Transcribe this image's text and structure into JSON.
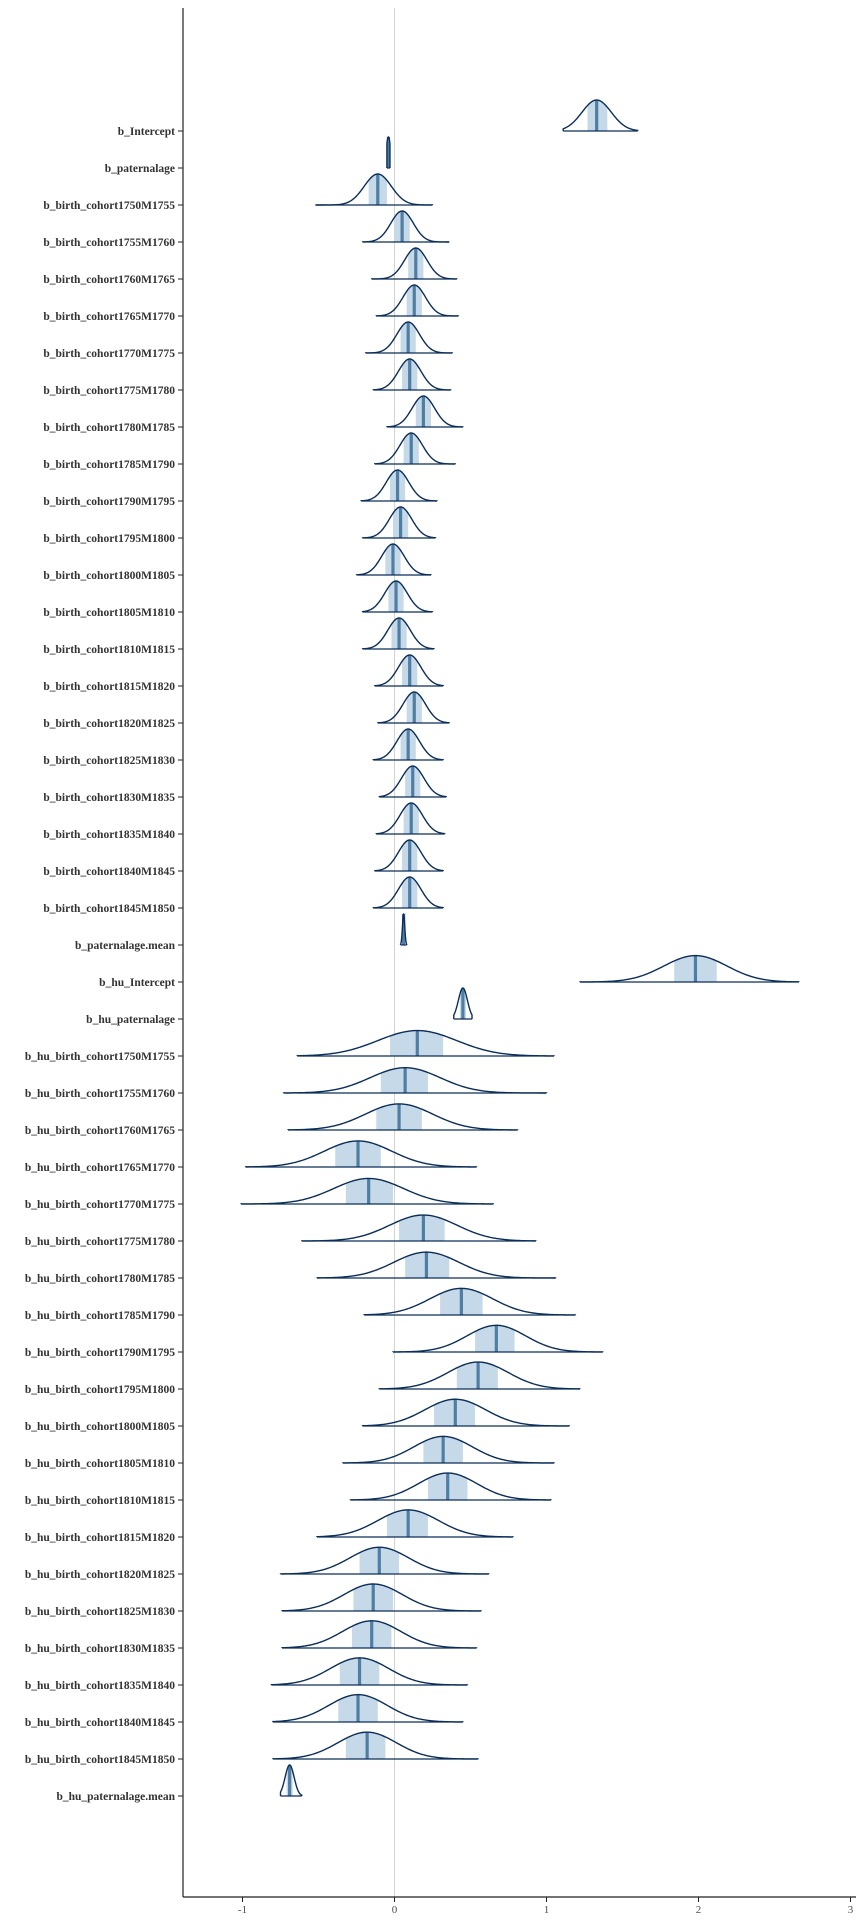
{
  "chart_data": {
    "type": "ridgeline",
    "title": "",
    "xlabel": "",
    "ylabel": "",
    "xlim": [
      -1.4,
      3.0
    ],
    "xticks": [
      -1,
      0,
      1,
      2,
      3
    ],
    "xtick_labels": [
      "-1",
      "0",
      "1",
      "2",
      "3"
    ],
    "reference_line_x": 0,
    "grid": false,
    "colors": {
      "outline": "#0b2e59",
      "interval_fill": "#c6d9e8",
      "median_line": "#4f7ea4",
      "reference_line": "#d3d3d3",
      "axis": "#222222"
    },
    "parameters": [
      {
        "name": "b_Intercept",
        "median": 1.33,
        "lo": 1.27,
        "hi": 1.4,
        "min": 1.11,
        "max": 1.6
      },
      {
        "name": "b_paternalage",
        "median": -0.04,
        "lo": -0.05,
        "hi": -0.03,
        "min": -0.05,
        "max": -0.03
      },
      {
        "name": "b_birth_cohort1750M1755",
        "median": -0.11,
        "lo": -0.17,
        "hi": -0.05,
        "min": -0.52,
        "max": 0.25
      },
      {
        "name": "b_birth_cohort1755M1760",
        "median": 0.05,
        "lo": 0.0,
        "hi": 0.1,
        "min": -0.21,
        "max": 0.36
      },
      {
        "name": "b_birth_cohort1760M1765",
        "median": 0.14,
        "lo": 0.09,
        "hi": 0.19,
        "min": -0.15,
        "max": 0.41
      },
      {
        "name": "b_birth_cohort1765M1770",
        "median": 0.13,
        "lo": 0.08,
        "hi": 0.18,
        "min": -0.12,
        "max": 0.42
      },
      {
        "name": "b_birth_cohort1770M1775",
        "median": 0.09,
        "lo": 0.04,
        "hi": 0.14,
        "min": -0.19,
        "max": 0.38
      },
      {
        "name": "b_birth_cohort1775M1780",
        "median": 0.1,
        "lo": 0.05,
        "hi": 0.15,
        "min": -0.14,
        "max": 0.37
      },
      {
        "name": "b_birth_cohort1780M1785",
        "median": 0.19,
        "lo": 0.14,
        "hi": 0.24,
        "min": -0.05,
        "max": 0.45
      },
      {
        "name": "b_birth_cohort1785M1790",
        "median": 0.11,
        "lo": 0.06,
        "hi": 0.16,
        "min": -0.13,
        "max": 0.4
      },
      {
        "name": "b_birth_cohort1790M1795",
        "median": 0.02,
        "lo": -0.03,
        "hi": 0.07,
        "min": -0.22,
        "max": 0.28
      },
      {
        "name": "b_birth_cohort1795M1800",
        "median": 0.04,
        "lo": -0.01,
        "hi": 0.09,
        "min": -0.21,
        "max": 0.27
      },
      {
        "name": "b_birth_cohort1800M1805",
        "median": -0.01,
        "lo": -0.06,
        "hi": 0.04,
        "min": -0.25,
        "max": 0.24
      },
      {
        "name": "b_birth_cohort1805M1810",
        "median": 0.01,
        "lo": -0.04,
        "hi": 0.06,
        "min": -0.21,
        "max": 0.25
      },
      {
        "name": "b_birth_cohort1810M1815",
        "median": 0.03,
        "lo": -0.02,
        "hi": 0.08,
        "min": -0.21,
        "max": 0.26
      },
      {
        "name": "b_birth_cohort1815M1820",
        "median": 0.1,
        "lo": 0.05,
        "hi": 0.15,
        "min": -0.13,
        "max": 0.32
      },
      {
        "name": "b_birth_cohort1820M1825",
        "median": 0.13,
        "lo": 0.08,
        "hi": 0.18,
        "min": -0.11,
        "max": 0.36
      },
      {
        "name": "b_birth_cohort1825M1830",
        "median": 0.09,
        "lo": 0.04,
        "hi": 0.14,
        "min": -0.14,
        "max": 0.32
      },
      {
        "name": "b_birth_cohort1830M1835",
        "median": 0.12,
        "lo": 0.07,
        "hi": 0.17,
        "min": -0.1,
        "max": 0.34
      },
      {
        "name": "b_birth_cohort1835M1840",
        "median": 0.11,
        "lo": 0.06,
        "hi": 0.16,
        "min": -0.12,
        "max": 0.33
      },
      {
        "name": "b_birth_cohort1840M1845",
        "median": 0.1,
        "lo": 0.05,
        "hi": 0.15,
        "min": -0.13,
        "max": 0.32
      },
      {
        "name": "b_birth_cohort1845M1850",
        "median": 0.1,
        "lo": 0.05,
        "hi": 0.15,
        "min": -0.14,
        "max": 0.32
      },
      {
        "name": "b_paternalage.mean",
        "median": 0.06,
        "lo": 0.055,
        "hi": 0.065,
        "min": 0.04,
        "max": 0.08
      },
      {
        "name": "b_hu_Intercept",
        "median": 1.98,
        "lo": 1.84,
        "hi": 2.12,
        "min": 1.22,
        "max": 2.66
      },
      {
        "name": "b_hu_paternalage",
        "median": 0.45,
        "lo": 0.43,
        "hi": 0.47,
        "min": 0.39,
        "max": 0.51
      },
      {
        "name": "b_hu_birth_cohort1750M1755",
        "median": 0.15,
        "lo": -0.03,
        "hi": 0.32,
        "min": -0.64,
        "max": 1.05
      },
      {
        "name": "b_hu_birth_cohort1755M1760",
        "median": 0.07,
        "lo": -0.09,
        "hi": 0.22,
        "min": -0.73,
        "max": 1.0
      },
      {
        "name": "b_hu_birth_cohort1760M1765",
        "median": 0.03,
        "lo": -0.12,
        "hi": 0.18,
        "min": -0.7,
        "max": 0.81
      },
      {
        "name": "b_hu_birth_cohort1765M1770",
        "median": -0.24,
        "lo": -0.39,
        "hi": -0.09,
        "min": -0.98,
        "max": 0.54
      },
      {
        "name": "b_hu_birth_cohort1770M1775",
        "median": -0.17,
        "lo": -0.32,
        "hi": -0.01,
        "min": -1.01,
        "max": 0.65
      },
      {
        "name": "b_hu_birth_cohort1775M1780",
        "median": 0.19,
        "lo": 0.03,
        "hi": 0.33,
        "min": -0.61,
        "max": 0.93
      },
      {
        "name": "b_hu_birth_cohort1780M1785",
        "median": 0.21,
        "lo": 0.07,
        "hi": 0.36,
        "min": -0.51,
        "max": 1.06
      },
      {
        "name": "b_hu_birth_cohort1785M1790",
        "median": 0.44,
        "lo": 0.3,
        "hi": 0.58,
        "min": -0.2,
        "max": 1.19
      },
      {
        "name": "b_hu_birth_cohort1790M1795",
        "median": 0.67,
        "lo": 0.53,
        "hi": 0.79,
        "min": -0.01,
        "max": 1.37
      },
      {
        "name": "b_hu_birth_cohort1795M1800",
        "median": 0.55,
        "lo": 0.41,
        "hi": 0.68,
        "min": -0.1,
        "max": 1.22
      },
      {
        "name": "b_hu_birth_cohort1800M1805",
        "median": 0.4,
        "lo": 0.26,
        "hi": 0.53,
        "min": -0.21,
        "max": 1.15
      },
      {
        "name": "b_hu_birth_cohort1805M1810",
        "median": 0.32,
        "lo": 0.19,
        "hi": 0.45,
        "min": -0.34,
        "max": 1.05
      },
      {
        "name": "b_hu_birth_cohort1810M1815",
        "median": 0.35,
        "lo": 0.22,
        "hi": 0.48,
        "min": -0.29,
        "max": 1.03
      },
      {
        "name": "b_hu_birth_cohort1815M1820",
        "median": 0.09,
        "lo": -0.05,
        "hi": 0.22,
        "min": -0.51,
        "max": 0.78
      },
      {
        "name": "b_hu_birth_cohort1820M1825",
        "median": -0.1,
        "lo": -0.23,
        "hi": 0.03,
        "min": -0.75,
        "max": 0.62
      },
      {
        "name": "b_hu_birth_cohort1825M1830",
        "median": -0.14,
        "lo": -0.27,
        "hi": -0.01,
        "min": -0.74,
        "max": 0.57
      },
      {
        "name": "b_hu_birth_cohort1830M1835",
        "median": -0.15,
        "lo": -0.28,
        "hi": -0.02,
        "min": -0.74,
        "max": 0.54
      },
      {
        "name": "b_hu_birth_cohort1835M1840",
        "median": -0.23,
        "lo": -0.36,
        "hi": -0.1,
        "min": -0.81,
        "max": 0.48
      },
      {
        "name": "b_hu_birth_cohort1840M1845",
        "median": -0.24,
        "lo": -0.37,
        "hi": -0.11,
        "min": -0.8,
        "max": 0.45
      },
      {
        "name": "b_hu_birth_cohort1845M1850",
        "median": -0.18,
        "lo": -0.32,
        "hi": -0.06,
        "min": -0.8,
        "max": 0.55
      },
      {
        "name": "b_hu_paternalage.mean",
        "median": -0.69,
        "lo": -0.71,
        "hi": -0.67,
        "min": -0.75,
        "max": -0.61
      }
    ]
  }
}
